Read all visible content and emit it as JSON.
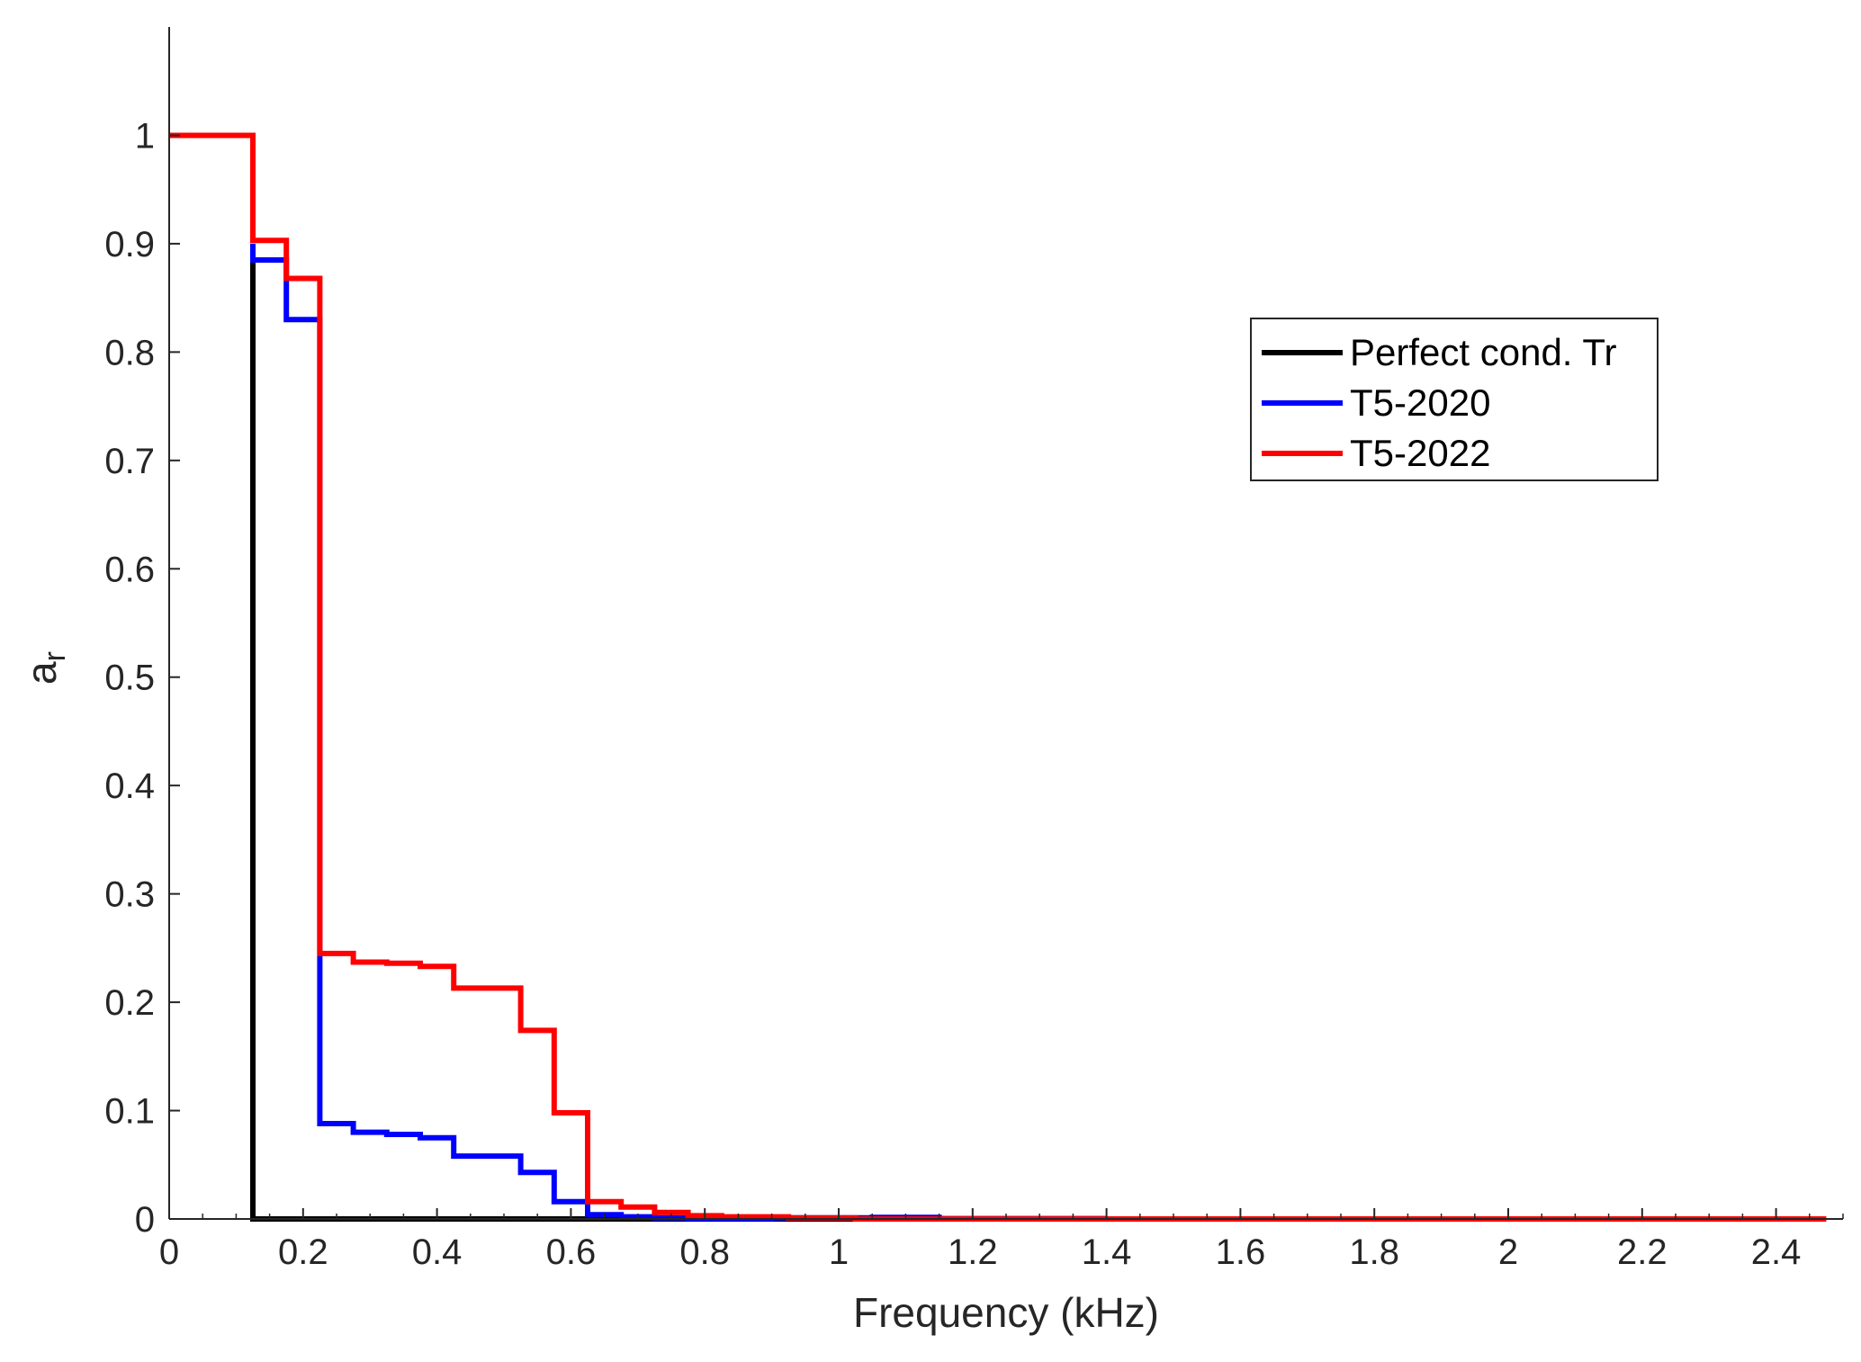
{
  "chart_data": {
    "type": "line",
    "title": "",
    "xlabel": "Frequency (kHz)",
    "ylabel_base": "a",
    "ylabel_sub": "r",
    "xlim": [
      0,
      2.5
    ],
    "ylim": [
      0,
      1.1
    ],
    "xticks": [
      0,
      0.2,
      0.4,
      0.6,
      0.8,
      1,
      1.2,
      1.4,
      1.6,
      1.8,
      2,
      2.2,
      2.4
    ],
    "xtick_labels": [
      "0",
      "0.2",
      "0.4",
      "0.6",
      "0.8",
      "1",
      "1.2",
      "1.4",
      "1.6",
      "1.8",
      "2",
      "2.2",
      "2.4"
    ],
    "yticks": [
      0,
      0.1,
      0.2,
      0.3,
      0.4,
      0.5,
      0.6,
      0.7,
      0.8,
      0.9,
      1
    ],
    "ytick_labels": [
      "0",
      "0.1",
      "0.2",
      "0.3",
      "0.4",
      "0.5",
      "0.6",
      "0.7",
      "0.8",
      "0.9",
      "1"
    ],
    "legend_position": "upper-right",
    "series": [
      {
        "name": "Perfect cond. Tr",
        "color": "#000000",
        "x": [
          0.125,
          0.125,
          2.0
        ],
        "y": [
          0.885,
          0,
          0
        ],
        "note": "stairs (drawn beneath other series)"
      },
      {
        "name": "T5-2020",
        "color": "#0000ff",
        "x": [
          0.125,
          0.125,
          0.175,
          0.175,
          0.225,
          0.225,
          0.275,
          0.275,
          0.325,
          0.325,
          0.375,
          0.375,
          0.425,
          0.425,
          0.475,
          0.475,
          0.525,
          0.525,
          0.575,
          0.575,
          0.625,
          0.625,
          0.675,
          0.675,
          0.725,
          0.725,
          0.775,
          0.775,
          0.9,
          0.9,
          1.05,
          1.05,
          1.15,
          1.15,
          1.4
        ],
        "y": [
          0.9,
          0.885,
          0.885,
          0.83,
          0.83,
          0.088,
          0.088,
          0.08,
          0.08,
          0.078,
          0.078,
          0.075,
          0.075,
          0.058,
          0.058,
          0.058,
          0.058,
          0.043,
          0.043,
          0.016,
          0.016,
          0.004,
          0.004,
          0.002,
          0.002,
          0.001,
          0.001,
          0.0005,
          0.0005,
          0.001,
          0.001,
          0.0015,
          0.0015,
          0.0003,
          0.0003
        ]
      },
      {
        "name": "T5-2022",
        "color": "#ff0000",
        "x": [
          0,
          0.125,
          0.125,
          0.175,
          0.175,
          0.225,
          0.225,
          0.275,
          0.275,
          0.325,
          0.325,
          0.375,
          0.375,
          0.425,
          0.425,
          0.475,
          0.475,
          0.525,
          0.525,
          0.575,
          0.575,
          0.625,
          0.625,
          0.675,
          0.675,
          0.725,
          0.725,
          0.775,
          0.775,
          0.825,
          0.825,
          0.925,
          0.925,
          1.025,
          1.025,
          2.475
        ],
        "y": [
          1,
          1,
          0.903,
          0.903,
          0.868,
          0.868,
          0.245,
          0.245,
          0.237,
          0.237,
          0.236,
          0.236,
          0.233,
          0.233,
          0.213,
          0.213,
          0.213,
          0.213,
          0.174,
          0.174,
          0.098,
          0.098,
          0.016,
          0.016,
          0.011,
          0.011,
          0.006,
          0.006,
          0.003,
          0.003,
          0.002,
          0.002,
          0.001,
          0.001,
          0,
          0
        ]
      }
    ]
  }
}
